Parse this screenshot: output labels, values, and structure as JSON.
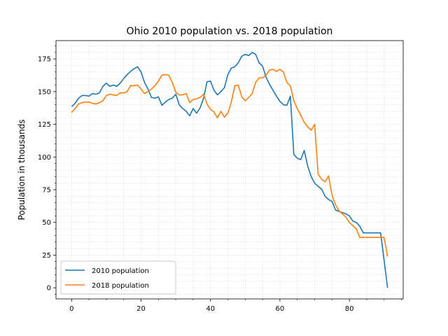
{
  "chart_data": {
    "type": "line",
    "title": "Ohio 2010 population vs. 2018 population",
    "xlabel": "",
    "ylabel": "Population in thousands",
    "xlim": [
      -4.5,
      95.5
    ],
    "ylim": [
      -8.5,
      189
    ],
    "xticks": [
      0,
      20,
      40,
      60,
      80
    ],
    "yticks": [
      0,
      25,
      50,
      75,
      100,
      125,
      150,
      175
    ],
    "grid": true,
    "legend_position": "lower-left",
    "x": [
      0,
      1,
      2,
      3,
      4,
      5,
      6,
      7,
      8,
      9,
      10,
      11,
      12,
      13,
      14,
      15,
      16,
      17,
      18,
      19,
      20,
      21,
      22,
      23,
      24,
      25,
      26,
      27,
      28,
      29,
      30,
      31,
      32,
      33,
      34,
      35,
      36,
      37,
      38,
      39,
      40,
      41,
      42,
      43,
      44,
      45,
      46,
      47,
      48,
      49,
      50,
      51,
      52,
      53,
      54,
      55,
      56,
      57,
      58,
      59,
      60,
      61,
      62,
      63,
      64,
      65,
      66,
      67,
      68,
      69,
      70,
      71,
      72,
      73,
      74,
      75,
      76,
      77,
      78,
      79,
      80,
      81,
      82,
      83,
      84,
      85,
      86,
      87,
      88,
      89,
      90,
      91
    ],
    "series": [
      {
        "name": "2010 population",
        "color": "#1f77b4",
        "values": [
          138.5,
          141,
          145,
          147,
          147,
          146.5,
          148.5,
          148,
          149,
          154,
          156.5,
          154,
          155,
          154,
          156.5,
          160,
          163,
          165.5,
          167.5,
          169,
          165,
          157,
          152,
          145.5,
          145,
          146,
          139.5,
          142,
          144,
          145,
          148,
          140,
          137,
          135,
          131.5,
          137,
          133.5,
          137.5,
          145,
          157.5,
          158,
          151,
          147.5,
          150,
          153,
          163,
          168,
          169,
          172,
          177,
          178.5,
          177.5,
          180,
          178.5,
          172,
          169.5,
          161,
          155.5,
          151,
          146.5,
          142.5,
          140,
          139.5,
          146.5,
          102,
          99,
          98,
          105,
          93,
          85,
          80,
          77.5,
          75.5,
          70,
          67.5,
          66,
          59.5,
          58.5,
          57.5,
          56.5,
          55,
          51,
          50,
          47,
          42,
          42,
          42,
          42,
          42,
          42,
          21,
          0
        ]
      },
      {
        "name": "2018 population",
        "color": "#ff7f0e",
        "values": [
          134,
          137,
          140.5,
          141.5,
          142,
          142,
          141,
          140.5,
          141.5,
          143,
          147,
          148,
          147.5,
          147,
          149,
          149,
          150,
          154.5,
          154.5,
          155,
          152,
          148.5,
          150,
          152,
          154.5,
          158,
          162.5,
          163,
          162.5,
          157,
          149.5,
          147.5,
          147.5,
          148.5,
          141.5,
          144,
          144.5,
          145.5,
          148,
          140.5,
          136.5,
          134.5,
          130,
          135,
          130.5,
          133.5,
          142,
          154.5,
          155,
          146,
          143,
          145.5,
          148.5,
          157,
          160.5,
          160.5,
          162.5,
          166.5,
          167,
          165.5,
          167,
          165,
          157,
          154.5,
          143,
          137,
          132,
          126.5,
          123,
          120.5,
          125,
          87,
          83,
          81,
          85.5,
          71,
          63.5,
          59,
          56.5,
          54,
          50,
          47.5,
          45,
          38.5,
          38.5,
          38.5,
          38.5,
          38.5,
          38.5,
          38.5,
          38.5,
          24
        ]
      }
    ]
  }
}
